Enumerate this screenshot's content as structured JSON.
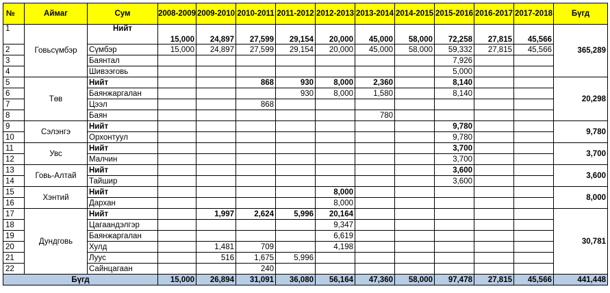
{
  "headers": {
    "no": "№",
    "aimag": "Аймаг",
    "sum": "Сум",
    "years": [
      "2008-2009",
      "2009-2010",
      "2010-2011",
      "2011-2012",
      "2012-2013",
      "2013-2014",
      "2014-2015",
      "2015-2016",
      "2016-2017",
      "2017-2018"
    ],
    "total": "Бүгд"
  },
  "groups": [
    {
      "aimag": "Говьсүмбэр",
      "total": "365,289",
      "rows": [
        {
          "n": "1",
          "sum": "Нийт",
          "sub": true,
          "vals": [
            "15,000",
            "24,897",
            "27,599",
            "29,154",
            "20,000",
            "45,000",
            "58,000",
            "72,258",
            "27,815",
            "45,566"
          ]
        },
        {
          "n": "2",
          "sum": "Сүмбэр",
          "vals": [
            "15,000",
            "24,897",
            "27,599",
            "29,154",
            "20,000",
            "45,000",
            "58,000",
            "59,332",
            "27,815",
            "45,566"
          ]
        },
        {
          "n": "3",
          "sum": "Баянтал",
          "vals": [
            "",
            "",
            "",
            "",
            "",
            "",
            "",
            "7,926",
            "",
            ""
          ]
        },
        {
          "n": "4",
          "sum": "Шивээговь",
          "vals": [
            "",
            "",
            "",
            "",
            "",
            "",
            "",
            "5,000",
            "",
            ""
          ]
        }
      ]
    },
    {
      "aimag": "Төв",
      "total": "20,298",
      "rows": [
        {
          "n": "5",
          "sum": "Нийт",
          "sub": true,
          "vals": [
            "",
            "",
            "868",
            "930",
            "8,000",
            "2,360",
            "",
            "8,140",
            "",
            ""
          ]
        },
        {
          "n": "6",
          "sum": "Баянжаргалан",
          "vals": [
            "",
            "",
            "",
            "930",
            "8,000",
            "1,580",
            "",
            "8,140",
            "",
            ""
          ]
        },
        {
          "n": "7",
          "sum": "Цээл",
          "vals": [
            "",
            "",
            "868",
            "",
            "",
            "",
            "",
            "",
            "",
            ""
          ]
        },
        {
          "n": "8",
          "sum": "Баян",
          "vals": [
            "",
            "",
            "",
            "",
            "",
            "780",
            "",
            "",
            "",
            ""
          ]
        }
      ]
    },
    {
      "aimag": "Сэлэнгэ",
      "total": "9,780",
      "rows": [
        {
          "n": "9",
          "sum": "Нийт",
          "sub": true,
          "vals": [
            "",
            "",
            "",
            "",
            "",
            "",
            "",
            "9,780",
            "",
            ""
          ]
        },
        {
          "n": "10",
          "sum": "Орхонтуул",
          "vals": [
            "",
            "",
            "",
            "",
            "",
            "",
            "",
            "9,780",
            "",
            ""
          ]
        }
      ]
    },
    {
      "aimag": "Увс",
      "total": "3,700",
      "rows": [
        {
          "n": "11",
          "sum": "Нийт",
          "sub": true,
          "vals": [
            "",
            "",
            "",
            "",
            "",
            "",
            "",
            "3,700",
            "",
            ""
          ]
        },
        {
          "n": "12",
          "sum": "Малчин",
          "vals": [
            "",
            "",
            "",
            "",
            "",
            "",
            "",
            "3,700",
            "",
            ""
          ]
        }
      ]
    },
    {
      "aimag": "Говь-Алтай",
      "total": "3,600",
      "rows": [
        {
          "n": "13",
          "sum": "Нийт",
          "sub": true,
          "vals": [
            "",
            "",
            "",
            "",
            "",
            "",
            "",
            "3,600",
            "",
            ""
          ]
        },
        {
          "n": "14",
          "sum": "Тайшир",
          "vals": [
            "",
            "",
            "",
            "",
            "",
            "",
            "",
            "3,600",
            "",
            ""
          ]
        }
      ]
    },
    {
      "aimag": "Хэнтий",
      "total": "8,000",
      "rows": [
        {
          "n": "15",
          "sum": "Нийт",
          "sub": true,
          "vals": [
            "",
            "",
            "",
            "",
            "8,000",
            "",
            "",
            "",
            "",
            ""
          ]
        },
        {
          "n": "16",
          "sum": "Дархан",
          "vals": [
            "",
            "",
            "",
            "",
            "8,000",
            "",
            "",
            "",
            "",
            ""
          ]
        }
      ]
    },
    {
      "aimag": "Дундговь",
      "total": "30,781",
      "rows": [
        {
          "n": "17",
          "sum": "Нийт",
          "sub": true,
          "vals": [
            "",
            "1,997",
            "2,624",
            "5,996",
            "20,164",
            "",
            "",
            "",
            "",
            ""
          ]
        },
        {
          "n": "18",
          "sum": "Цагаандэлгэр",
          "vals": [
            "",
            "",
            "",
            "",
            "9,347",
            "",
            "",
            "",
            "",
            ""
          ]
        },
        {
          "n": "19",
          "sum": "Баянжаргалан",
          "vals": [
            "",
            "",
            "",
            "",
            "6,619",
            "",
            "",
            "",
            "",
            ""
          ]
        },
        {
          "n": "20",
          "sum": "Хулд",
          "vals": [
            "",
            "1,481",
            "709",
            "",
            "4,198",
            "",
            "",
            "",
            "",
            ""
          ]
        },
        {
          "n": "21",
          "sum": "Луус",
          "vals": [
            "",
            "516",
            "1,675",
            "5,996",
            "",
            "",
            "",
            "",
            "",
            ""
          ]
        },
        {
          "n": "22",
          "sum": "Сайнцагаан",
          "vals": [
            "",
            "",
            "240",
            "",
            "",
            "",
            "",
            "",
            "",
            ""
          ]
        }
      ]
    }
  ],
  "footer": {
    "label": "Бүгд",
    "vals": [
      "15,000",
      "26,894",
      "31,091",
      "36,080",
      "56,164",
      "47,360",
      "58,000",
      "97,478",
      "27,815",
      "45,566"
    ],
    "total": "441,448"
  }
}
